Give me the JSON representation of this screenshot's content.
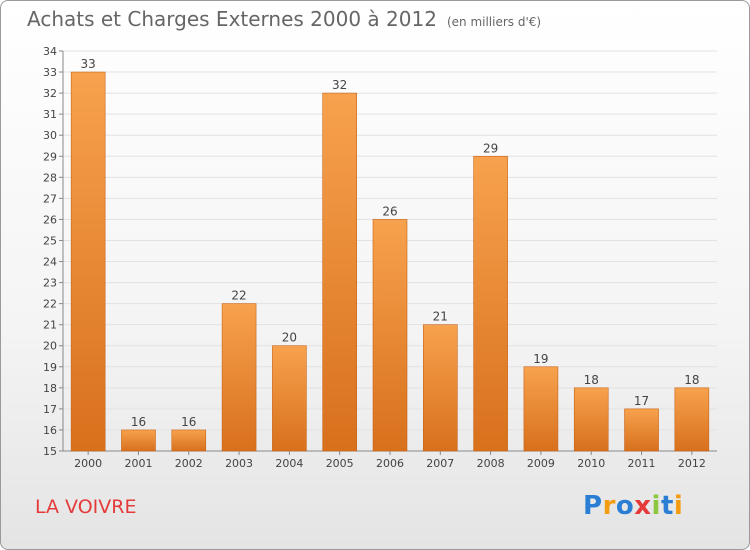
{
  "title": "Achats et Charges Externes 2000 à 2012",
  "unit_note": "(en milliers d'€)",
  "commune": "LA VOIVRE",
  "logo": {
    "text": "Proxiti",
    "letters": [
      "P",
      "r",
      "o",
      "x",
      "i",
      "t",
      "i"
    ],
    "colors": [
      "#2a7fd4",
      "#f39c12",
      "#2a7fd4",
      "#e53a3a",
      "#8dc63f",
      "#2a7fd4",
      "#f39c12"
    ]
  },
  "colors": {
    "bar_light": "#f7a24e",
    "bar_dark": "#d8701c",
    "title": "#666666",
    "commune": "#e53a3a"
  },
  "chart_data": {
    "type": "bar",
    "title": "Achats et Charges Externes 2000 à 2012",
    "subtitle": "(en milliers d'€)",
    "xlabel": "",
    "ylabel": "",
    "categories": [
      "2000",
      "2001",
      "2002",
      "2003",
      "2004",
      "2005",
      "2006",
      "2007",
      "2008",
      "2009",
      "2010",
      "2011",
      "2012"
    ],
    "values": [
      33,
      16,
      16,
      22,
      20,
      32,
      26,
      21,
      29,
      19,
      18,
      17,
      18
    ],
    "ylim": [
      15,
      34
    ],
    "yticks": [
      15,
      16,
      17,
      18,
      19,
      20,
      21,
      22,
      23,
      24,
      25,
      26,
      27,
      28,
      29,
      30,
      31,
      32,
      33,
      34
    ],
    "grid": true,
    "data_labels": true
  }
}
